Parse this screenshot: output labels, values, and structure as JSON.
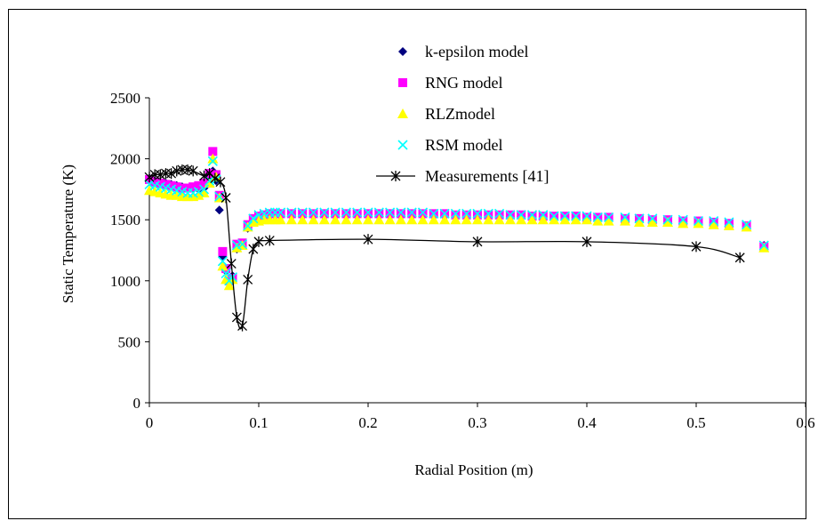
{
  "chart_data": {
    "type": "scatter",
    "title": "",
    "xlabel": "Radial Position (m)",
    "ylabel": "Static Temperature (K)",
    "xlim": [
      0,
      0.6
    ],
    "ylim": [
      0,
      2500
    ],
    "x_ticks": [
      0,
      0.1,
      0.2,
      0.3,
      0.4,
      0.5,
      0.6
    ],
    "y_ticks": [
      0,
      500,
      1000,
      1500,
      2000,
      2500
    ],
    "x_tick_labels": [
      "0",
      "0.1",
      "0.2",
      "0.3",
      "0.4",
      "0.5",
      "0.6"
    ],
    "y_tick_labels": [
      "0",
      "500",
      "1000",
      "1500",
      "2000",
      "2500"
    ],
    "grid": false,
    "legend_position": "top-center",
    "series": [
      {
        "name": "k-epsilon model",
        "marker": "diamond",
        "color": "#000080",
        "x": [
          0.0,
          0.005,
          0.01,
          0.015,
          0.02,
          0.025,
          0.03,
          0.035,
          0.04,
          0.045,
          0.05,
          0.055,
          0.058,
          0.061,
          0.064,
          0.067,
          0.07,
          0.073,
          0.076,
          0.08,
          0.085,
          0.09,
          0.095,
          0.1,
          0.105,
          0.11,
          0.115,
          0.12,
          0.13,
          0.14,
          0.15,
          0.16,
          0.17,
          0.18,
          0.19,
          0.2,
          0.21,
          0.22,
          0.23,
          0.24,
          0.25,
          0.26,
          0.27,
          0.28,
          0.29,
          0.3,
          0.31,
          0.32,
          0.33,
          0.34,
          0.35,
          0.36,
          0.37,
          0.38,
          0.39,
          0.4,
          0.41,
          0.42,
          0.435,
          0.448,
          0.46,
          0.474,
          0.488,
          0.502,
          0.516,
          0.53,
          0.546,
          0.562
        ],
        "y": [
          1840,
          1820,
          1810,
          1800,
          1790,
          1780,
          1770,
          1760,
          1760,
          1750,
          1760,
          1840,
          1900,
          1820,
          1580,
          1200,
          1080,
          1000,
          1040,
          1260,
          1300,
          1430,
          1490,
          1510,
          1520,
          1530,
          1530,
          1530,
          1530,
          1530,
          1530,
          1530,
          1530,
          1530,
          1530,
          1530,
          1530,
          1530,
          1530,
          1530,
          1530,
          1530,
          1530,
          1530,
          1530,
          1530,
          1530,
          1530,
          1530,
          1530,
          1530,
          1530,
          1530,
          1530,
          1520,
          1520,
          1520,
          1520,
          1510,
          1510,
          1500,
          1500,
          1490,
          1490,
          1480,
          1470,
          1450,
          1290
        ]
      },
      {
        "name": "RNG model",
        "marker": "square",
        "color": "#ff00ff",
        "x": [
          0.0,
          0.005,
          0.01,
          0.015,
          0.02,
          0.025,
          0.03,
          0.035,
          0.04,
          0.045,
          0.05,
          0.055,
          0.058,
          0.061,
          0.064,
          0.067,
          0.07,
          0.073,
          0.076,
          0.08,
          0.085,
          0.09,
          0.095,
          0.1,
          0.105,
          0.11,
          0.115,
          0.12,
          0.13,
          0.14,
          0.15,
          0.16,
          0.17,
          0.18,
          0.19,
          0.2,
          0.21,
          0.22,
          0.23,
          0.24,
          0.25,
          0.26,
          0.27,
          0.28,
          0.29,
          0.3,
          0.31,
          0.32,
          0.33,
          0.34,
          0.35,
          0.36,
          0.37,
          0.38,
          0.39,
          0.4,
          0.41,
          0.42,
          0.435,
          0.448,
          0.46,
          0.474,
          0.488,
          0.502,
          0.516,
          0.53,
          0.546,
          0.562
        ],
        "y": [
          1830,
          1810,
          1800,
          1790,
          1780,
          1770,
          1760,
          1760,
          1770,
          1780,
          1800,
          1880,
          2060,
          1870,
          1700,
          1240,
          1100,
          1000,
          1020,
          1300,
          1310,
          1460,
          1510,
          1530,
          1540,
          1550,
          1550,
          1550,
          1550,
          1550,
          1550,
          1550,
          1550,
          1550,
          1550,
          1550,
          1550,
          1550,
          1550,
          1550,
          1550,
          1550,
          1550,
          1540,
          1540,
          1540,
          1540,
          1540,
          1540,
          1540,
          1530,
          1530,
          1530,
          1530,
          1530,
          1520,
          1520,
          1520,
          1510,
          1510,
          1500,
          1500,
          1490,
          1490,
          1480,
          1470,
          1450,
          1280
        ]
      },
      {
        "name": "RLZmodel",
        "marker": "triangle",
        "color": "#ffff00",
        "x": [
          0.0,
          0.005,
          0.01,
          0.015,
          0.02,
          0.025,
          0.03,
          0.035,
          0.04,
          0.045,
          0.05,
          0.055,
          0.058,
          0.061,
          0.064,
          0.067,
          0.07,
          0.073,
          0.076,
          0.08,
          0.085,
          0.09,
          0.095,
          0.1,
          0.105,
          0.11,
          0.115,
          0.12,
          0.13,
          0.14,
          0.15,
          0.16,
          0.17,
          0.18,
          0.19,
          0.2,
          0.21,
          0.22,
          0.23,
          0.24,
          0.25,
          0.26,
          0.27,
          0.28,
          0.29,
          0.3,
          0.31,
          0.32,
          0.33,
          0.34,
          0.35,
          0.36,
          0.37,
          0.38,
          0.39,
          0.4,
          0.41,
          0.42,
          0.435,
          0.448,
          0.46,
          0.474,
          0.488,
          0.502,
          0.516,
          0.53,
          0.546,
          0.562
        ],
        "y": [
          1740,
          1730,
          1720,
          1710,
          1700,
          1700,
          1690,
          1690,
          1690,
          1700,
          1720,
          1800,
          2000,
          1850,
          1680,
          1120,
          1010,
          960,
          1010,
          1270,
          1290,
          1440,
          1480,
          1490,
          1500,
          1500,
          1500,
          1500,
          1500,
          1500,
          1500,
          1500,
          1500,
          1500,
          1500,
          1500,
          1500,
          1500,
          1500,
          1500,
          1500,
          1500,
          1500,
          1500,
          1500,
          1500,
          1500,
          1500,
          1500,
          1500,
          1500,
          1500,
          1500,
          1500,
          1500,
          1500,
          1490,
          1490,
          1490,
          1480,
          1480,
          1480,
          1470,
          1470,
          1460,
          1450,
          1440,
          1270
        ]
      },
      {
        "name": "RSM model",
        "marker": "x",
        "color": "#00ffff",
        "x": [
          0.0,
          0.005,
          0.01,
          0.015,
          0.02,
          0.025,
          0.03,
          0.035,
          0.04,
          0.045,
          0.05,
          0.055,
          0.058,
          0.061,
          0.064,
          0.067,
          0.07,
          0.073,
          0.076,
          0.08,
          0.085,
          0.09,
          0.095,
          0.1,
          0.105,
          0.11,
          0.115,
          0.12,
          0.13,
          0.14,
          0.15,
          0.16,
          0.17,
          0.18,
          0.19,
          0.2,
          0.21,
          0.22,
          0.23,
          0.24,
          0.25,
          0.26,
          0.27,
          0.28,
          0.29,
          0.3,
          0.31,
          0.32,
          0.33,
          0.34,
          0.35,
          0.36,
          0.37,
          0.38,
          0.39,
          0.4,
          0.41,
          0.42,
          0.435,
          0.448,
          0.46,
          0.474,
          0.488,
          0.502,
          0.516,
          0.53,
          0.546,
          0.562
        ],
        "y": [
          1790,
          1780,
          1770,
          1760,
          1750,
          1740,
          1730,
          1720,
          1720,
          1730,
          1750,
          1820,
          1980,
          1830,
          1690,
          1160,
          1060,
          1000,
          1030,
          1290,
          1300,
          1450,
          1510,
          1540,
          1550,
          1560,
          1560,
          1560,
          1560,
          1560,
          1560,
          1560,
          1560,
          1560,
          1560,
          1560,
          1560,
          1560,
          1560,
          1560,
          1560,
          1550,
          1550,
          1550,
          1550,
          1550,
          1550,
          1550,
          1540,
          1540,
          1540,
          1540,
          1530,
          1530,
          1530,
          1530,
          1520,
          1520,
          1520,
          1510,
          1510,
          1500,
          1500,
          1490,
          1490,
          1480,
          1460,
          1290
        ]
      },
      {
        "name": "Measurements [41]",
        "marker": "asterisk",
        "color": "#000000",
        "line": true,
        "x": [
          0.0,
          0.005,
          0.01,
          0.015,
          0.02,
          0.025,
          0.03,
          0.035,
          0.04,
          0.05,
          0.055,
          0.06,
          0.065,
          0.07,
          0.075,
          0.08,
          0.085,
          0.09,
          0.095,
          0.1,
          0.11,
          0.2,
          0.3,
          0.4,
          0.5,
          0.54
        ],
        "y": [
          1850,
          1870,
          1870,
          1880,
          1880,
          1900,
          1910,
          1910,
          1900,
          1860,
          1880,
          1840,
          1810,
          1680,
          1140,
          700,
          630,
          1010,
          1260,
          1320,
          1330,
          1340,
          1320,
          1320,
          1280,
          1190
        ]
      }
    ]
  }
}
